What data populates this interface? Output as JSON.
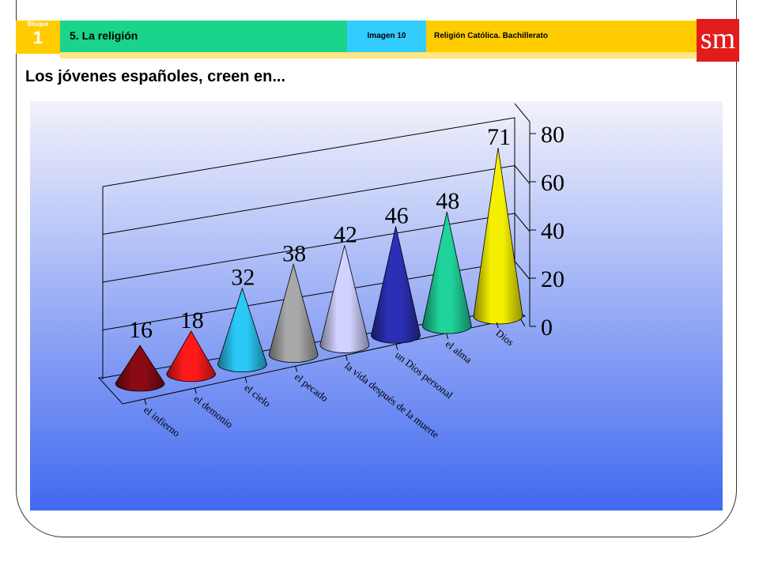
{
  "header": {
    "bloque_label": "Bloque",
    "bloque_number": "1",
    "section": "5. La religión",
    "image_label": "Imagen 10",
    "course": "Religión Católica. Bachillerato",
    "logo": "sm"
  },
  "page_title": "Los jóvenes españoles, creen en...",
  "colors": {
    "green": "#19d48a",
    "cyan": "#33ccff",
    "yellow": "#ffcc00",
    "logo": "#e31b1b"
  },
  "chart_data": {
    "type": "bar",
    "style": "3d-cone",
    "categories": [
      "el infierno",
      "el demonio",
      "el cielo",
      "el pecado",
      "la vida después de la muerte",
      "un Dios personal",
      "el alma",
      "Dios"
    ],
    "values": [
      16,
      18,
      32,
      38,
      42,
      46,
      48,
      71
    ],
    "value_labels": [
      "16",
      "18",
      "32",
      "38",
      "42",
      "46",
      "48",
      "71"
    ],
    "yticks": [
      "0",
      "20",
      "40",
      "60",
      "80"
    ],
    "ylim": [
      0,
      80
    ],
    "series_colors": [
      "#8b0a14",
      "#ff1a1a",
      "#29c8f5",
      "#a8a8a8",
      "#d2d2ff",
      "#2b2fb5",
      "#1fd39a",
      "#f5f000"
    ],
    "grid": true,
    "legend": "none"
  }
}
